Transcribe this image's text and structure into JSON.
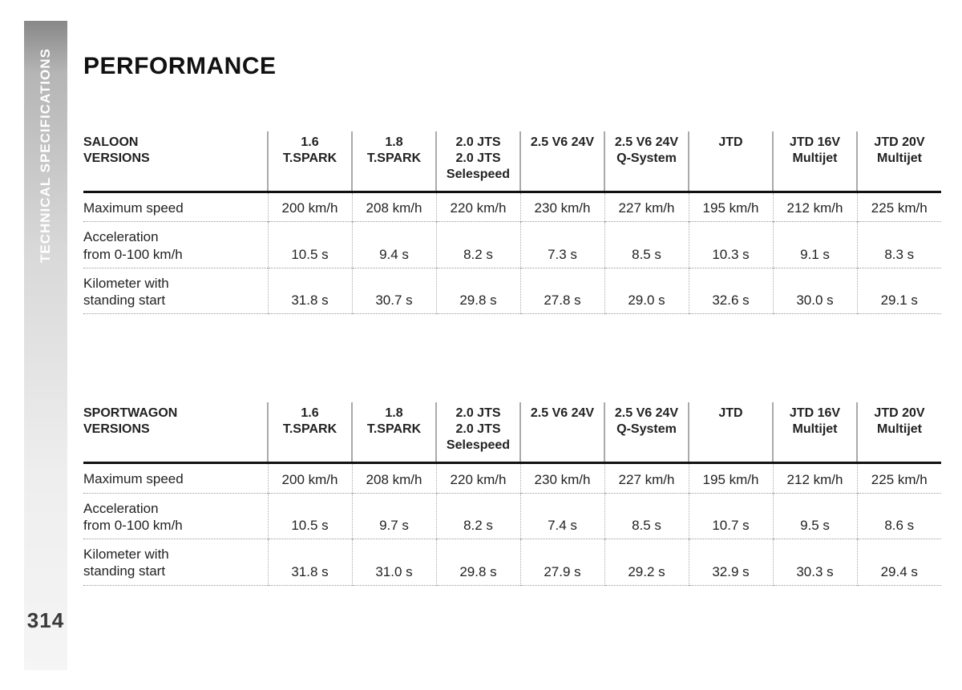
{
  "page_number": "314",
  "sidebar_label": "TECHNICAL SPECIFICATIONS",
  "title": "PERFORMANCE",
  "colors": {
    "text": "#222222",
    "title": "#111111",
    "rule_heavy": "#111111",
    "rule_light": "#aaaaaa",
    "dotted": "#999999",
    "sidebar_top": "#888888",
    "sidebar_bottom": "#f5f5f5",
    "background": "#ffffff"
  },
  "typography": {
    "title_fontsize_pt": 22,
    "header_fontsize_pt": 12,
    "body_fontsize_pt": 12,
    "sidebar_fontsize_pt": 12,
    "pagenum_fontsize_pt": 19
  },
  "column_headers": [
    [
      "1.6",
      "T.SPARK"
    ],
    [
      "1.8",
      "T.SPARK"
    ],
    [
      "2.0 JTS",
      "2.0 JTS",
      "Selespeed"
    ],
    [
      "2.5 V6 24V"
    ],
    [
      "2.5 V6 24V",
      "Q-System"
    ],
    [
      "JTD"
    ],
    [
      "JTD 16V",
      "Multijet"
    ],
    [
      "JTD 20V",
      "Multijet"
    ]
  ],
  "tables": [
    {
      "type": "table",
      "label_header": [
        "SALOON",
        "VERSIONS"
      ],
      "rows": [
        {
          "label": [
            "Maximum speed"
          ],
          "values": [
            "200 km/h",
            "208 km/h",
            "220 km/h",
            "230 km/h",
            "227 km/h",
            "195 km/h",
            "212 km/h",
            "225 km/h"
          ]
        },
        {
          "label": [
            "Acceleration",
            "from 0-100 km/h"
          ],
          "values": [
            "10.5 s",
            "9.4 s",
            "8.2 s",
            "7.3 s",
            "8.5 s",
            "10.3 s",
            "9.1 s",
            "8.3 s"
          ]
        },
        {
          "label": [
            "Kilometer with",
            "standing start"
          ],
          "values": [
            "31.8 s",
            "30.7 s",
            "29.8 s",
            "27.8 s",
            "29.0 s",
            "32.6 s",
            "30.0 s",
            "29.1 s"
          ]
        }
      ]
    },
    {
      "type": "table",
      "label_header": [
        "SPORTWAGON",
        "VERSIONS"
      ],
      "rows": [
        {
          "label": [
            "Maximum speed"
          ],
          "values": [
            "200 km/h",
            "208 km/h",
            "220 km/h",
            "230 km/h",
            "227 km/h",
            "195 km/h",
            "212 km/h",
            "225 km/h"
          ]
        },
        {
          "label": [
            "Acceleration",
            "from 0-100 km/h"
          ],
          "values": [
            "10.5 s",
            "9.7 s",
            "8.2 s",
            "7.4 s",
            "8.5 s",
            "10.7 s",
            "9.5 s",
            "8.6 s"
          ]
        },
        {
          "label": [
            "Kilometer with",
            "standing start"
          ],
          "values": [
            "31.8 s",
            "31.0 s",
            "29.8 s",
            "27.9 s",
            "29.2 s",
            "32.9 s",
            "30.3 s",
            "29.4 s"
          ]
        }
      ]
    }
  ]
}
